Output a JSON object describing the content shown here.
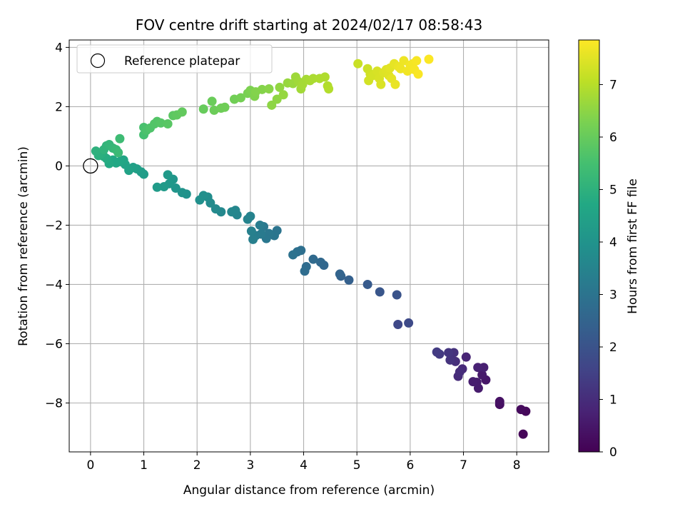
{
  "chart_data": {
    "type": "scatter",
    "title": "FOV centre drift starting at 2024/02/17 08:58:43",
    "xlabel": "Angular distance from reference (arcmin)",
    "ylabel": "Rotation from reference (arcmin)",
    "xlim": [
      -0.4,
      8.6
    ],
    "ylim": [
      -9.65,
      4.25
    ],
    "xticks": [
      0,
      1,
      2,
      3,
      4,
      5,
      6,
      7,
      8
    ],
    "yticks": [
      -8,
      -6,
      -4,
      -2,
      0,
      2,
      4
    ],
    "grid": true,
    "legend": {
      "position": "top-left",
      "entries": [
        "Reference platepar"
      ]
    },
    "reference_point": {
      "x": 0,
      "y": 0
    },
    "colorbar": {
      "label": "Hours from first FF file",
      "range": [
        0,
        7.85
      ],
      "ticks": [
        0,
        1,
        2,
        3,
        4,
        5,
        6,
        7
      ],
      "colormap": "viridis"
    },
    "series": [
      {
        "points": [
          [
            8.12,
            -9.05,
            0.1
          ],
          [
            8.17,
            -8.28,
            0.15
          ],
          [
            8.08,
            -8.22,
            0.2
          ],
          [
            7.68,
            -8.05,
            0.3
          ],
          [
            7.68,
            -7.95,
            0.35
          ],
          [
            7.42,
            -7.22,
            0.5
          ],
          [
            7.35,
            -7.05,
            0.55
          ],
          [
            7.28,
            -7.5,
            0.6
          ],
          [
            7.25,
            -7.3,
            0.62
          ],
          [
            7.18,
            -7.28,
            0.65
          ],
          [
            7.38,
            -6.8,
            0.7
          ],
          [
            7.27,
            -6.8,
            0.75
          ],
          [
            7.05,
            -6.45,
            0.8
          ],
          [
            6.98,
            -6.85,
            0.9
          ],
          [
            6.9,
            -7.1,
            0.95
          ],
          [
            6.93,
            -6.95,
            1.0
          ],
          [
            6.85,
            -6.6,
            1.05
          ],
          [
            6.82,
            -6.3,
            1.1
          ],
          [
            6.75,
            -6.55,
            1.15
          ],
          [
            6.72,
            -6.3,
            1.2
          ],
          [
            6.55,
            -6.35,
            1.3
          ],
          [
            6.5,
            -6.28,
            1.35
          ],
          [
            5.77,
            -5.35,
            1.7
          ],
          [
            5.97,
            -5.3,
            1.75
          ],
          [
            5.75,
            -4.35,
            2.0
          ],
          [
            5.43,
            -4.25,
            2.1
          ],
          [
            5.2,
            -4.0,
            2.2
          ],
          [
            4.85,
            -3.85,
            2.4
          ],
          [
            4.7,
            -3.72,
            2.45
          ],
          [
            4.68,
            -3.65,
            2.5
          ],
          [
            4.38,
            -3.35,
            2.6
          ],
          [
            4.32,
            -3.25,
            2.65
          ],
          [
            4.18,
            -3.15,
            2.7
          ],
          [
            4.05,
            -3.4,
            2.75
          ],
          [
            4.02,
            -3.55,
            2.8
          ],
          [
            3.95,
            -2.85,
            2.85
          ],
          [
            3.88,
            -2.9,
            2.9
          ],
          [
            3.8,
            -3.0,
            2.95
          ],
          [
            3.5,
            -2.18,
            3.0
          ],
          [
            3.45,
            -2.35,
            3.05
          ],
          [
            3.35,
            -2.28,
            3.1
          ],
          [
            3.3,
            -2.45,
            3.12
          ],
          [
            3.25,
            -2.05,
            3.15
          ],
          [
            3.2,
            -2.3,
            3.2
          ],
          [
            3.18,
            -2.0,
            3.25
          ],
          [
            3.1,
            -2.35,
            3.3
          ],
          [
            3.05,
            -2.48,
            3.35
          ],
          [
            3.02,
            -2.2,
            3.4
          ],
          [
            3.0,
            -1.7,
            3.45
          ],
          [
            2.95,
            -1.8,
            3.5
          ],
          [
            2.75,
            -1.65,
            3.55
          ],
          [
            2.72,
            -1.5,
            3.58
          ],
          [
            2.65,
            -1.55,
            3.62
          ],
          [
            2.45,
            -1.55,
            3.65
          ],
          [
            2.35,
            -1.45,
            3.7
          ],
          [
            2.25,
            -1.25,
            3.75
          ],
          [
            2.2,
            -1.05,
            3.8
          ],
          [
            2.12,
            -1.0,
            3.85
          ],
          [
            2.05,
            -1.15,
            3.9
          ],
          [
            1.8,
            -0.95,
            3.95
          ],
          [
            1.72,
            -0.9,
            4.0
          ],
          [
            1.6,
            -0.75,
            4.05
          ],
          [
            1.55,
            -0.45,
            4.1
          ],
          [
            1.48,
            -0.6,
            4.15
          ],
          [
            1.45,
            -0.3,
            4.2
          ],
          [
            1.38,
            -0.7,
            4.22
          ],
          [
            1.25,
            -0.72,
            4.25
          ],
          [
            1.0,
            -0.28,
            4.3
          ],
          [
            0.95,
            -0.2,
            4.35
          ],
          [
            0.87,
            -0.1,
            4.4
          ],
          [
            0.8,
            -0.05,
            4.45
          ],
          [
            0.72,
            -0.15,
            4.5
          ],
          [
            0.65,
            0.05,
            4.55
          ],
          [
            0.62,
            0.2,
            4.6
          ],
          [
            0.55,
            0.15,
            4.65
          ],
          [
            0.48,
            0.1,
            4.7
          ],
          [
            0.42,
            0.2,
            4.72
          ],
          [
            0.35,
            0.08,
            4.75
          ],
          [
            0.3,
            0.25,
            4.8
          ],
          [
            0.25,
            0.32,
            4.85
          ],
          [
            0.2,
            0.4,
            4.9
          ],
          [
            0.15,
            0.35,
            4.95
          ],
          [
            0.1,
            0.5,
            5.0
          ],
          [
            0.25,
            0.55,
            5.05
          ],
          [
            0.3,
            0.68,
            5.1
          ],
          [
            0.35,
            0.72,
            5.15
          ],
          [
            0.42,
            0.6,
            5.2
          ],
          [
            0.48,
            0.55,
            5.25
          ],
          [
            0.52,
            0.45,
            5.3
          ],
          [
            0.55,
            0.92,
            5.35
          ],
          [
            1.0,
            1.05,
            5.5
          ],
          [
            1.0,
            1.3,
            5.55
          ],
          [
            1.05,
            1.2,
            5.6
          ],
          [
            1.12,
            1.28,
            5.65
          ],
          [
            1.2,
            1.42,
            5.7
          ],
          [
            1.25,
            1.5,
            5.72
          ],
          [
            1.32,
            1.45,
            5.75
          ],
          [
            1.45,
            1.42,
            5.8
          ],
          [
            1.55,
            1.7,
            5.85
          ],
          [
            1.62,
            1.72,
            5.9
          ],
          [
            1.72,
            1.82,
            5.95
          ],
          [
            2.12,
            1.92,
            6.0
          ],
          [
            2.28,
            2.18,
            6.05
          ],
          [
            2.32,
            1.88,
            6.08
          ],
          [
            2.45,
            1.95,
            6.1
          ],
          [
            2.52,
            1.98,
            6.12
          ],
          [
            2.7,
            2.25,
            6.15
          ],
          [
            2.82,
            2.3,
            6.2
          ],
          [
            2.95,
            2.45,
            6.25
          ],
          [
            3.0,
            2.55,
            6.3
          ],
          [
            3.08,
            2.35,
            6.35
          ],
          [
            3.1,
            2.5,
            6.38
          ],
          [
            3.22,
            2.58,
            6.4
          ],
          [
            3.35,
            2.6,
            6.45
          ],
          [
            3.4,
            2.05,
            6.5
          ],
          [
            3.5,
            2.25,
            6.52
          ],
          [
            3.55,
            2.65,
            6.55
          ],
          [
            3.62,
            2.4,
            6.6
          ],
          [
            3.7,
            2.8,
            6.62
          ],
          [
            3.8,
            2.78,
            6.65
          ],
          [
            3.85,
            3.0,
            6.7
          ],
          [
            3.9,
            2.85,
            6.72
          ],
          [
            3.95,
            2.6,
            6.75
          ],
          [
            3.98,
            2.75,
            6.78
          ],
          [
            4.05,
            2.92,
            6.8
          ],
          [
            4.12,
            2.88,
            6.82
          ],
          [
            4.18,
            2.95,
            6.85
          ],
          [
            4.3,
            2.95,
            6.88
          ],
          [
            4.4,
            3.0,
            6.9
          ],
          [
            4.45,
            2.7,
            6.92
          ],
          [
            4.47,
            2.6,
            6.95
          ],
          [
            5.02,
            3.45,
            7.2
          ],
          [
            5.2,
            3.28,
            7.25
          ],
          [
            5.25,
            3.1,
            7.3
          ],
          [
            5.22,
            2.88,
            7.32
          ],
          [
            5.3,
            3.05,
            7.35
          ],
          [
            5.38,
            3.2,
            7.38
          ],
          [
            5.42,
            2.95,
            7.4
          ],
          [
            5.45,
            2.75,
            7.42
          ],
          [
            5.5,
            3.15,
            7.45
          ],
          [
            5.55,
            3.25,
            7.48
          ],
          [
            5.6,
            3.05,
            7.5
          ],
          [
            5.62,
            3.3,
            7.52
          ],
          [
            5.65,
            2.95,
            7.55
          ],
          [
            5.7,
            3.45,
            7.57
          ],
          [
            5.72,
            2.75,
            7.6
          ],
          [
            5.78,
            3.35,
            7.62
          ],
          [
            5.82,
            3.28,
            7.65
          ],
          [
            5.88,
            3.55,
            7.67
          ],
          [
            5.95,
            3.2,
            7.7
          ],
          [
            6.0,
            3.4,
            7.72
          ],
          [
            6.05,
            3.45,
            7.74
          ],
          [
            6.08,
            3.25,
            7.76
          ],
          [
            6.12,
            3.55,
            7.78
          ],
          [
            6.15,
            3.1,
            7.8
          ],
          [
            6.35,
            3.6,
            7.83
          ]
        ]
      }
    ]
  }
}
